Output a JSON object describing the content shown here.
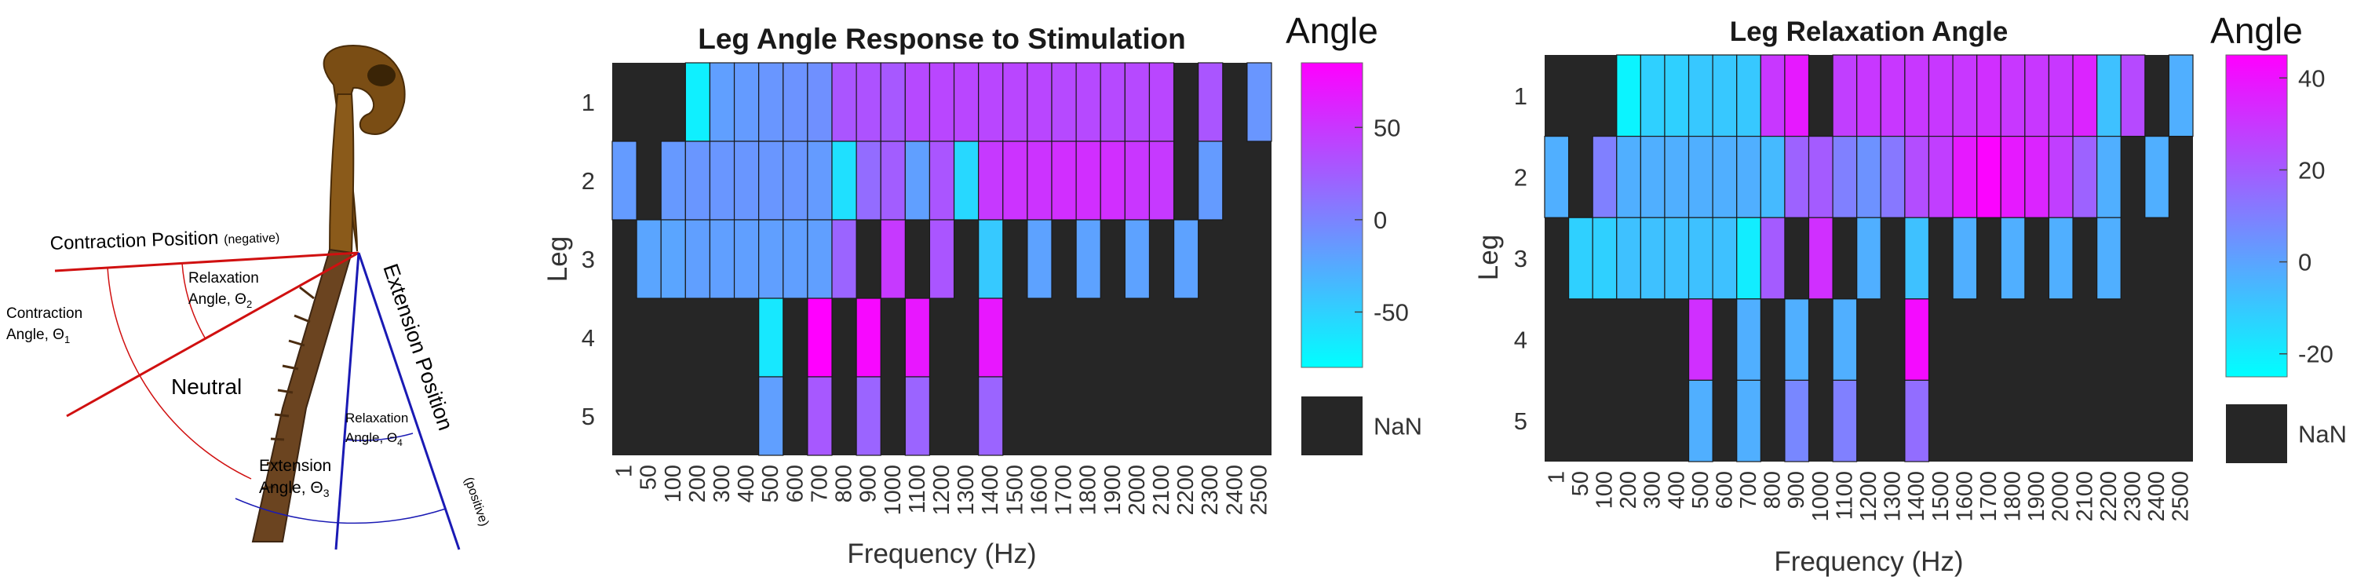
{
  "chart_data": [
    {
      "type": "heatmap",
      "title": "Leg Angle Response to Stimulation",
      "xlabel": "Frequency (Hz)",
      "ylabel": "Leg",
      "colorbar_label": "Angle",
      "colorbar_ticks": [
        50,
        0,
        -50
      ],
      "clim": [
        -80,
        85
      ],
      "nan_label": "NaN",
      "x": [
        "1",
        "50",
        "100",
        "200",
        "300",
        "400",
        "500",
        "600",
        "700",
        "800",
        "900",
        "1000",
        "1100",
        "1200",
        "1300",
        "1400",
        "1500",
        "1600",
        "1700",
        "1800",
        "1900",
        "2000",
        "2100",
        "2200",
        "2300",
        "2400",
        "2500"
      ],
      "y": [
        "1",
        "2",
        "3",
        "4",
        "5"
      ],
      "values": [
        [
          null,
          null,
          null,
          -70,
          -18,
          -15,
          -12,
          -10,
          -8,
          30,
          32,
          28,
          38,
          40,
          40,
          40,
          40,
          40,
          38,
          38,
          38,
          38,
          40,
          null,
          30,
          null,
          -12
        ],
        [
          -15,
          null,
          -14,
          -12,
          -12,
          -12,
          -12,
          -12,
          -15,
          -60,
          15,
          25,
          -18,
          30,
          -55,
          48,
          52,
          52,
          55,
          55,
          55,
          50,
          48,
          null,
          -15,
          null,
          null
        ],
        [
          null,
          -22,
          -22,
          -18,
          -18,
          -18,
          -18,
          -18,
          -18,
          20,
          null,
          48,
          null,
          30,
          null,
          -45,
          null,
          -20,
          null,
          -20,
          null,
          -20,
          null,
          -20,
          null,
          null,
          null
        ],
        [
          null,
          null,
          null,
          null,
          null,
          null,
          -65,
          null,
          85,
          null,
          80,
          null,
          70,
          null,
          null,
          70,
          null,
          null,
          null,
          null,
          null,
          null,
          null,
          null,
          null,
          null,
          null
        ],
        [
          null,
          null,
          null,
          null,
          null,
          null,
          -18,
          null,
          28,
          null,
          20,
          null,
          20,
          null,
          null,
          20,
          null,
          null,
          null,
          null,
          null,
          null,
          null,
          null,
          null,
          null,
          null
        ]
      ]
    },
    {
      "type": "heatmap",
      "title": "Leg Relaxation Angle",
      "xlabel": "Frequency (Hz)",
      "ylabel": "Leg",
      "colorbar_label": "Angle",
      "colorbar_ticks": [
        40,
        20,
        0,
        -20
      ],
      "clim": [
        -25,
        45
      ],
      "nan_label": "NaN",
      "x": [
        "1",
        "50",
        "100",
        "200",
        "300",
        "400",
        "500",
        "600",
        "700",
        "800",
        "900",
        "1000",
        "1100",
        "1200",
        "1300",
        "1400",
        "1500",
        "1600",
        "1700",
        "1800",
        "1900",
        "2000",
        "2100",
        "2200",
        "2300",
        "2400",
        "2500"
      ],
      "y": [
        "1",
        "2",
        "3",
        "4",
        "5"
      ],
      "values": [
        [
          null,
          null,
          null,
          -22,
          -12,
          -12,
          -10,
          -10,
          -10,
          30,
          38,
          null,
          28,
          30,
          30,
          30,
          30,
          30,
          32,
          30,
          30,
          30,
          35,
          -8,
          25,
          null,
          -3
        ],
        [
          -3,
          null,
          10,
          -3,
          -3,
          -3,
          -3,
          -3,
          -3,
          -6,
          18,
          20,
          10,
          5,
          12,
          24,
          28,
          38,
          44,
          38,
          35,
          28,
          18,
          -3,
          null,
          -3,
          null
        ],
        [
          null,
          -12,
          -12,
          -8,
          -8,
          -8,
          -8,
          -8,
          -20,
          20,
          null,
          32,
          null,
          -3,
          null,
          -8,
          null,
          -3,
          null,
          -3,
          null,
          -3,
          null,
          -3,
          null,
          null,
          null
        ],
        [
          null,
          null,
          null,
          null,
          null,
          null,
          32,
          null,
          -3,
          null,
          -3,
          null,
          -3,
          null,
          null,
          42,
          null,
          null,
          null,
          null,
          null,
          null,
          null,
          null,
          null,
          null,
          null
        ],
        [
          null,
          null,
          null,
          null,
          null,
          null,
          -3,
          null,
          -3,
          null,
          8,
          null,
          10,
          null,
          null,
          15,
          null,
          null,
          null,
          null,
          null,
          null,
          null,
          null,
          null,
          null,
          null
        ]
      ]
    }
  ],
  "diagram": {
    "contraction_position": "Contraction Position",
    "negative": "(negative)",
    "relaxation_angle": "Relaxation",
    "angle_theta2": "Angle, Θ",
    "sub2": "2",
    "contraction_angle": "Contraction",
    "angle_theta1": "Angle, Θ",
    "sub1": "1",
    "neutral": "Neutral",
    "extension_position": "Extension Position",
    "positive": "(positive)",
    "relaxation_angle4": "Relaxation",
    "angle_theta4": "Angle, Θ",
    "sub4": "4",
    "extension_angle": "Extension",
    "angle_theta3": "Angle, Θ",
    "sub3": "3"
  }
}
